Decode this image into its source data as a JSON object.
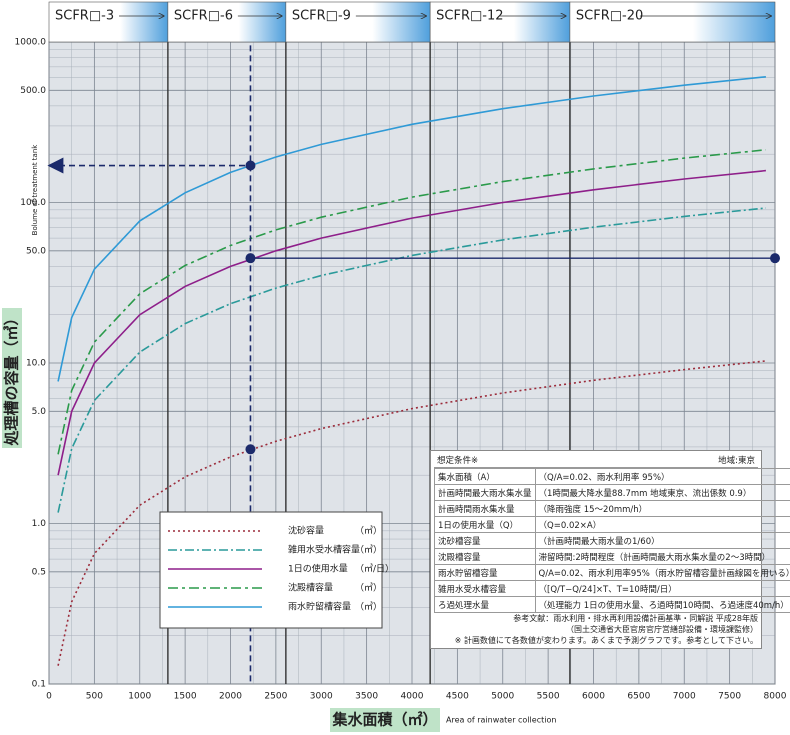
{
  "chart_data": {
    "type": "line",
    "y_label": "処理槽の容量（㎥）",
    "y_label_en": "Bolume of treatment tank",
    "x_label": "集水面積（㎡）",
    "x_label_en": "Area of rainwater collection",
    "log_y": true,
    "grid": true,
    "xlim": [
      0,
      8000
    ],
    "ylim": [
      0.1,
      1000
    ],
    "xticks": [
      0,
      500,
      1000,
      1500,
      2000,
      2500,
      3000,
      3500,
      4000,
      4500,
      5000,
      5500,
      6000,
      6500,
      7000,
      7500,
      8000
    ],
    "yticks": [
      {
        "value": 0.1,
        "label": "0.1"
      },
      {
        "value": 0.5,
        "label": "0.5"
      },
      {
        "value": 1,
        "label": "1.0"
      },
      {
        "value": 5,
        "label": "5.0"
      },
      {
        "value": 10,
        "label": "10.0"
      },
      {
        "value": 50,
        "label": "50.0"
      },
      {
        "value": 100,
        "label": "100.0"
      },
      {
        "value": 500,
        "label": "500.0"
      },
      {
        "value": 1000,
        "label": "1000.0"
      }
    ],
    "models": [
      {
        "name": "SCFR□-3",
        "from": 0,
        "to": 1310
      },
      {
        "name": "SCFR□-6",
        "from": 1310,
        "to": 2610
      },
      {
        "name": "SCFR□-9",
        "from": 2610,
        "to": 4200
      },
      {
        "name": "SCFR□-12",
        "from": 4200,
        "to": 5740
      },
      {
        "name": "SCFR□-20",
        "from": 5740,
        "to": 8000
      }
    ],
    "x": [
      100,
      250,
      500,
      1000,
      1500,
      2000,
      2500,
      3000,
      4000,
      5000,
      6000,
      7000,
      7900
    ],
    "series": [
      {
        "name": "沈砂容量",
        "unit": "（㎥）",
        "color": "#9b2b3a",
        "dash": "2 3",
        "values": [
          0.13,
          0.325,
          0.65,
          1.3,
          1.95,
          2.6,
          3.25,
          3.9,
          5.2,
          6.5,
          7.8,
          9.1,
          10.3
        ]
      },
      {
        "name": "雑用水受水槽容量",
        "unit": "（㎥）",
        "color": "#2a9a9a",
        "dash": "9 3 2 3",
        "values": [
          1.17,
          2.93,
          5.85,
          11.7,
          17.6,
          23.4,
          29.3,
          35.1,
          46.8,
          58.5,
          70.2,
          81.9,
          92.4
        ]
      },
      {
        "name": "1日の使用水量",
        "unit": "（㎥/日）",
        "color": "#8e1f8a",
        "dash": "",
        "values": [
          2,
          5,
          10,
          20,
          30,
          40,
          50,
          60,
          80,
          100,
          120,
          140,
          158
        ]
      },
      {
        "name": "沈殿槽容量",
        "unit": "（㎥）",
        "color": "#2a9a4a",
        "dash": "10 4 3 4",
        "values": [
          2.7,
          6.75,
          13.5,
          27,
          40.5,
          54,
          67.5,
          81,
          108,
          135,
          162,
          189,
          213
        ]
      },
      {
        "name": "雨水貯留槽容量",
        "unit": "（㎥）",
        "color": "#2f9ad6",
        "dash": "",
        "values": [
          7.68,
          19.2,
          38.4,
          76.8,
          115,
          154,
          192,
          230,
          307,
          384,
          461,
          538,
          607
        ]
      }
    ],
    "guide": {
      "area": 2220,
      "top": 1100,
      "storage": 170,
      "daily": 45,
      "sand": 2.9
    },
    "conditions": {
      "title": "想定条件※",
      "region": "地域:東京",
      "rows": [
        [
          "集水面積（A）",
          "（Q/A=0.02、雨水利用率 95%）"
        ],
        [
          "計画時間最大雨水集水量",
          "（1時間最大降水量88.7mm 地域東京、流出係数 0.9）"
        ],
        [
          "計画時間雨水集水量",
          "（降雨強度 15〜20mm/h）"
        ],
        [
          "1日の使用水量（Q）",
          "（Q=0.02×A）"
        ],
        [
          "沈砂槽容量",
          "（計画時間最大雨水量の1/60）"
        ],
        [
          "沈殿槽容量",
          "滞留時間:2時間程度（計画時間最大雨水集水量の2〜3時間）"
        ],
        [
          "雨水貯留槽容量",
          "Q/A=0.02、雨水利用率95%（雨水貯留槽容量計画線図を用いる）"
        ],
        [
          "雑用水受水槽容量",
          "（[Q/T−Q/24]×T、T=10時間/日）"
        ],
        [
          "ろ過処理水量",
          "（処理能力 1日の使用水量、ろ過時間10時間、ろ過速度40m/h）"
        ]
      ],
      "notes": [
        "参考文献：雨水利用・排水再利用設備計画基準・同解説 平成28年版",
        "（国土交通省大臣官房官庁営繕部設備・環境課監修）",
        "※ 計画数値にて各数値が変わります。あくまで予測グラフです。参考として下さい。"
      ]
    }
  }
}
